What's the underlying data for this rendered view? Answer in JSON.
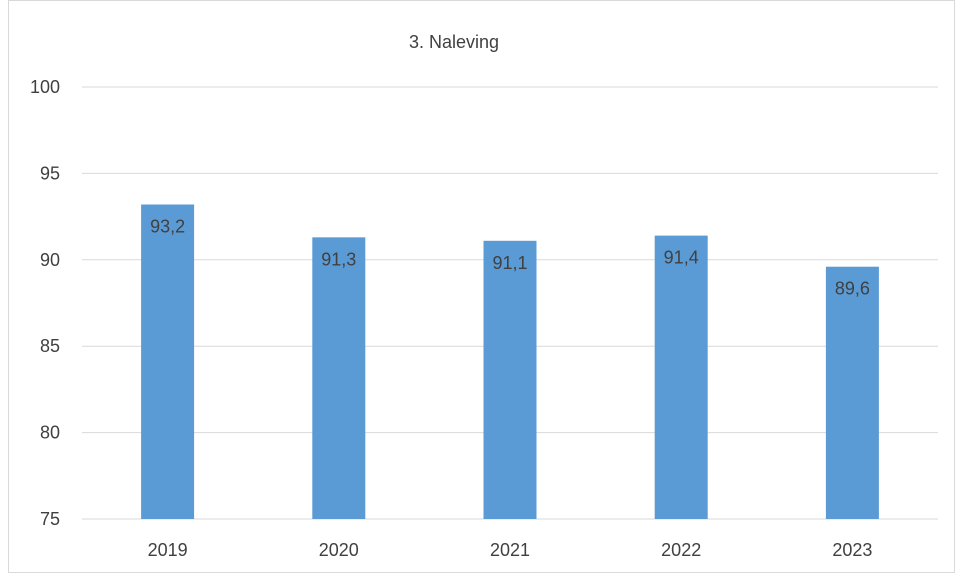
{
  "chart_data": {
    "type": "bar",
    "title": "3. Naleving",
    "categories": [
      "2019",
      "2020",
      "2021",
      "2022",
      "2023"
    ],
    "values": [
      93.2,
      91.3,
      91.1,
      91.4,
      89.6
    ],
    "data_labels": [
      "93,2",
      "91,3",
      "91,1",
      "91,4",
      "89,6"
    ],
    "ylim": [
      75,
      100
    ],
    "yticks": [
      "75",
      "80",
      "85",
      "90",
      "95",
      "100"
    ],
    "xlabel": "",
    "ylabel": "",
    "grid": true,
    "legend": "none",
    "bar_color": "#5b9bd5"
  }
}
